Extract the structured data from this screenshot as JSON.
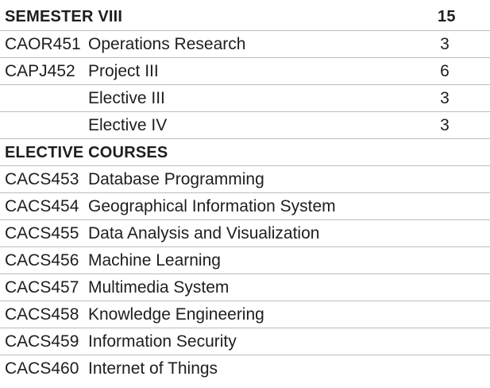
{
  "semester": {
    "heading": "SEMESTER VIII",
    "total_credits": "15",
    "courses": [
      {
        "code": "CAOR451",
        "title": "Operations Research",
        "credits": "3"
      },
      {
        "code": "CAPJ452",
        "title": "Project III",
        "credits": "6"
      },
      {
        "code": "",
        "title": "Elective III",
        "credits": "3"
      },
      {
        "code": "",
        "title": "Elective IV",
        "credits": "3"
      }
    ]
  },
  "electives": {
    "heading": "ELECTIVE COURSES",
    "courses": [
      {
        "code": "CACS453",
        "title": "Database Programming"
      },
      {
        "code": "CACS454",
        "title": "Geographical Information System"
      },
      {
        "code": "CACS455",
        "title": "Data Analysis and Visualization"
      },
      {
        "code": "CACS456",
        "title": "Machine Learning"
      },
      {
        "code": "CACS457",
        "title": "Multimedia System"
      },
      {
        "code": "CACS458",
        "title": "Knowledge Engineering"
      },
      {
        "code": "CACS459",
        "title": "Information Security"
      },
      {
        "code": "CACS460",
        "title": "Internet of Things"
      }
    ]
  }
}
